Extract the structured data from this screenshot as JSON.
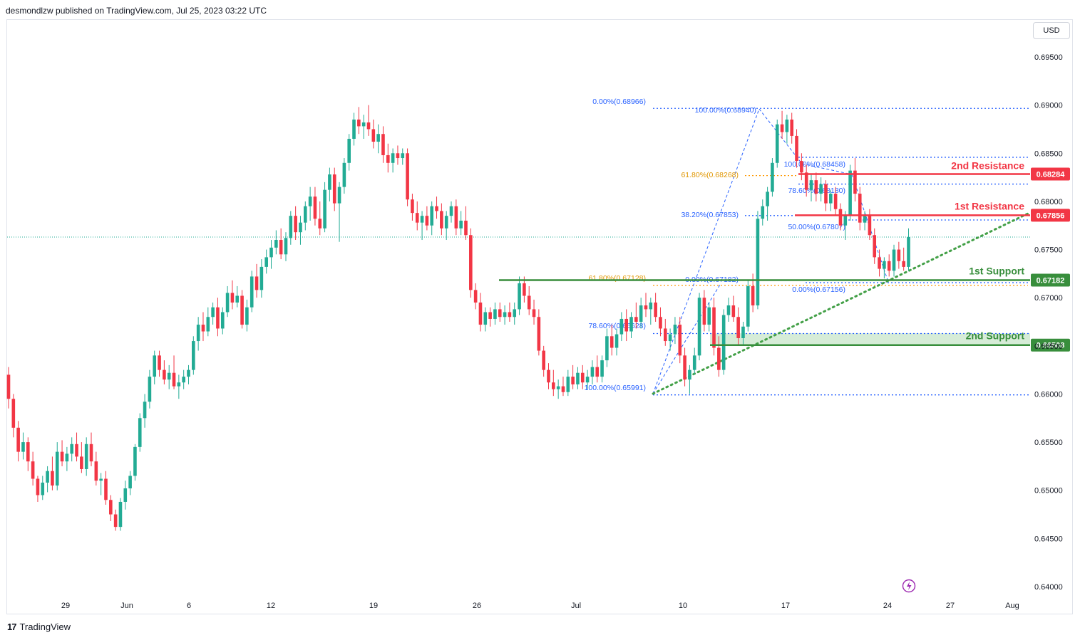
{
  "header": {
    "publisher": "desmondlzw published on TradingView.com, Jul 25, 2023 03:22 UTC"
  },
  "currency_button": "USD",
  "footer": {
    "brand": "TradingView",
    "logo": "17"
  },
  "colors": {
    "up": "#22ab94",
    "down": "#f23645",
    "resistance": "#f23645",
    "support": "#388e3c",
    "fib_blue": "#2962ff",
    "fib_orange": "#ff9800",
    "trend": "#43a047",
    "zone": "#c8e6c9"
  },
  "chart_data": {
    "type": "candlestick",
    "title": "",
    "y_axis": {
      "ticks": [
        "0.69500",
        "0.69000",
        "0.68500",
        "0.68000",
        "0.67500",
        "0.67000",
        "0.66500",
        "0.66000",
        "0.65500",
        "0.65000",
        "0.64500",
        "0.64000"
      ],
      "range": [
        0.6375,
        0.6985
      ]
    },
    "x_axis": {
      "labels": [
        "29",
        "Jun",
        "6",
        "12",
        "19",
        "26",
        "Jul",
        "10",
        "17",
        "24",
        "27",
        "Aug"
      ]
    },
    "last_price": 0.6763,
    "levels": [
      {
        "name": "2nd Resistance",
        "value": 0.68284,
        "label": "0.68284",
        "kind": "resistance"
      },
      {
        "name": "1st Resistance",
        "value": 0.67856,
        "label": "0.67856",
        "kind": "resistance"
      },
      {
        "name": "1st Support",
        "value": 0.67182,
        "label": "0.67182",
        "kind": "support"
      },
      {
        "name": "2nd Support",
        "value": 0.66508,
        "label": "0.66508",
        "kind": "support"
      }
    ],
    "fib_labels": [
      {
        "text": "0.00%(0.68966)",
        "color": "blue"
      },
      {
        "text": "100.00%(0.68940)",
        "color": "blue"
      },
      {
        "text": "100.00%(0.68458)",
        "color": "blue"
      },
      {
        "text": "61.80%(0.68268)",
        "color": "orange"
      },
      {
        "text": "78.60%(0.68180)",
        "color": "blue"
      },
      {
        "text": "38.20%(0.67853)",
        "color": "blue"
      },
      {
        "text": "50.00%(0.67807)",
        "color": "blue"
      },
      {
        "text": "61.80%(0.67128)",
        "color": "orange"
      },
      {
        "text": "0.00%(0.67182)",
        "color": "blue"
      },
      {
        "text": "0.00%(0.67156)",
        "color": "blue"
      },
      {
        "text": "78.60%(0.66628)",
        "color": "blue"
      },
      {
        "text": "100.00%(0.65991)",
        "color": "blue"
      }
    ],
    "candles": [
      [
        0.662,
        0.6628,
        0.6585,
        0.6595
      ],
      [
        0.6595,
        0.66,
        0.6555,
        0.6565
      ],
      [
        0.6565,
        0.6572,
        0.653,
        0.654
      ],
      [
        0.654,
        0.656,
        0.6532,
        0.655
      ],
      [
        0.655,
        0.6555,
        0.652,
        0.653
      ],
      [
        0.653,
        0.654,
        0.6505,
        0.6512
      ],
      [
        0.6512,
        0.6515,
        0.6488,
        0.6495
      ],
      [
        0.6495,
        0.6515,
        0.649,
        0.6508
      ],
      [
        0.6508,
        0.6525,
        0.6498,
        0.652
      ],
      [
        0.652,
        0.6535,
        0.65,
        0.6505
      ],
      [
        0.6505,
        0.655,
        0.65,
        0.654
      ],
      [
        0.654,
        0.6552,
        0.6525,
        0.653
      ],
      [
        0.653,
        0.6545,
        0.652,
        0.6538
      ],
      [
        0.6538,
        0.6555,
        0.653,
        0.6548
      ],
      [
        0.6548,
        0.656,
        0.653,
        0.6535
      ],
      [
        0.6535,
        0.655,
        0.6518,
        0.6522
      ],
      [
        0.6522,
        0.6555,
        0.6515,
        0.6548
      ],
      [
        0.6548,
        0.656,
        0.6525,
        0.653
      ],
      [
        0.653,
        0.654,
        0.6505,
        0.651
      ],
      [
        0.651,
        0.6518,
        0.6495,
        0.6512
      ],
      [
        0.6512,
        0.652,
        0.6485,
        0.649
      ],
      [
        0.649,
        0.6495,
        0.6468,
        0.6475
      ],
      [
        0.6475,
        0.648,
        0.6458,
        0.6462
      ],
      [
        0.6462,
        0.6492,
        0.6458,
        0.6488
      ],
      [
        0.6488,
        0.651,
        0.648,
        0.6502
      ],
      [
        0.6502,
        0.652,
        0.6495,
        0.6515
      ],
      [
        0.6515,
        0.6548,
        0.651,
        0.6545
      ],
      [
        0.6545,
        0.658,
        0.654,
        0.6575
      ],
      [
        0.6575,
        0.66,
        0.6565,
        0.6592
      ],
      [
        0.6592,
        0.6625,
        0.6585,
        0.6618
      ],
      [
        0.6618,
        0.6645,
        0.661,
        0.664
      ],
      [
        0.664,
        0.6645,
        0.6618,
        0.6625
      ],
      [
        0.6625,
        0.6635,
        0.661,
        0.6615
      ],
      [
        0.6615,
        0.663,
        0.6605,
        0.6622
      ],
      [
        0.6622,
        0.664,
        0.6605,
        0.6608
      ],
      [
        0.6608,
        0.662,
        0.6595,
        0.6612
      ],
      [
        0.6612,
        0.6625,
        0.6605,
        0.6618
      ],
      [
        0.6618,
        0.663,
        0.661,
        0.6625
      ],
      [
        0.6625,
        0.666,
        0.662,
        0.6655
      ],
      [
        0.6655,
        0.668,
        0.6645,
        0.6672
      ],
      [
        0.6672,
        0.6685,
        0.6655,
        0.6665
      ],
      [
        0.6665,
        0.669,
        0.666,
        0.668
      ],
      [
        0.668,
        0.6695,
        0.6672,
        0.669
      ],
      [
        0.669,
        0.67,
        0.666,
        0.6668
      ],
      [
        0.6668,
        0.669,
        0.6662,
        0.6685
      ],
      [
        0.6685,
        0.6712,
        0.668,
        0.6705
      ],
      [
        0.6705,
        0.6718,
        0.6688,
        0.6695
      ],
      [
        0.6695,
        0.6712,
        0.669,
        0.6702
      ],
      [
        0.6702,
        0.6708,
        0.6668,
        0.6672
      ],
      [
        0.6672,
        0.6698,
        0.6665,
        0.669
      ],
      [
        0.669,
        0.6728,
        0.6685,
        0.6722
      ],
      [
        0.6722,
        0.6735,
        0.67,
        0.6708
      ],
      [
        0.6708,
        0.674,
        0.67,
        0.6732
      ],
      [
        0.6732,
        0.675,
        0.6725,
        0.6742
      ],
      [
        0.6742,
        0.676,
        0.673,
        0.6752
      ],
      [
        0.6752,
        0.677,
        0.6745,
        0.676
      ],
      [
        0.676,
        0.6772,
        0.674,
        0.6745
      ],
      [
        0.6745,
        0.6768,
        0.6738,
        0.6762
      ],
      [
        0.6762,
        0.679,
        0.6755,
        0.6785
      ],
      [
        0.6785,
        0.6795,
        0.676,
        0.6768
      ],
      [
        0.6768,
        0.6785,
        0.6755,
        0.6778
      ],
      [
        0.6778,
        0.68,
        0.677,
        0.6795
      ],
      [
        0.6795,
        0.6815,
        0.678,
        0.6805
      ],
      [
        0.6805,
        0.6815,
        0.6775,
        0.6782
      ],
      [
        0.6782,
        0.68,
        0.6765,
        0.6772
      ],
      [
        0.6772,
        0.682,
        0.6768,
        0.6812
      ],
      [
        0.6812,
        0.6835,
        0.68,
        0.6828
      ],
      [
        0.6828,
        0.6835,
        0.679,
        0.6798
      ],
      [
        0.6798,
        0.682,
        0.6758,
        0.6815
      ],
      [
        0.6815,
        0.6845,
        0.6808,
        0.684
      ],
      [
        0.684,
        0.687,
        0.6832,
        0.6865
      ],
      [
        0.6865,
        0.6892,
        0.6858,
        0.6885
      ],
      [
        0.6885,
        0.6898,
        0.687,
        0.6878
      ],
      [
        0.6878,
        0.689,
        0.6865,
        0.6882
      ],
      [
        0.6882,
        0.69,
        0.6868,
        0.6875
      ],
      [
        0.6875,
        0.6885,
        0.6855,
        0.6862
      ],
      [
        0.6862,
        0.688,
        0.685,
        0.687
      ],
      [
        0.687,
        0.6878,
        0.684,
        0.6848
      ],
      [
        0.6848,
        0.686,
        0.683,
        0.684
      ],
      [
        0.684,
        0.6855,
        0.683,
        0.685
      ],
      [
        0.685,
        0.6858,
        0.6838,
        0.6845
      ],
      [
        0.6845,
        0.6855,
        0.6838,
        0.685
      ],
      [
        0.685,
        0.6855,
        0.6795,
        0.6802
      ],
      [
        0.6802,
        0.6808,
        0.678,
        0.6788
      ],
      [
        0.6788,
        0.68,
        0.677,
        0.6778
      ],
      [
        0.6778,
        0.679,
        0.676,
        0.6785
      ],
      [
        0.6785,
        0.6795,
        0.677,
        0.6775
      ],
      [
        0.6775,
        0.68,
        0.6765,
        0.6795
      ],
      [
        0.6795,
        0.6805,
        0.6782,
        0.679
      ],
      [
        0.679,
        0.6798,
        0.6765,
        0.6772
      ],
      [
        0.6772,
        0.679,
        0.676,
        0.6785
      ],
      [
        0.6785,
        0.68,
        0.6778,
        0.6795
      ],
      [
        0.6795,
        0.6802,
        0.6765,
        0.6772
      ],
      [
        0.6772,
        0.679,
        0.6765,
        0.678
      ],
      [
        0.678,
        0.6795,
        0.676,
        0.6765
      ],
      [
        0.6765,
        0.6772,
        0.67,
        0.6708
      ],
      [
        0.6708,
        0.6715,
        0.6688,
        0.6695
      ],
      [
        0.6695,
        0.6705,
        0.6665,
        0.6672
      ],
      [
        0.6672,
        0.669,
        0.6665,
        0.6685
      ],
      [
        0.6685,
        0.669,
        0.667,
        0.6678
      ],
      [
        0.6678,
        0.6695,
        0.6672,
        0.6688
      ],
      [
        0.6688,
        0.6695,
        0.6675,
        0.668
      ],
      [
        0.668,
        0.6692,
        0.6672,
        0.6685
      ],
      [
        0.6685,
        0.6695,
        0.6675,
        0.668
      ],
      [
        0.668,
        0.6695,
        0.6672,
        0.6688
      ],
      [
        0.6688,
        0.6722,
        0.6682,
        0.6715
      ],
      [
        0.6715,
        0.6722,
        0.6695,
        0.6702
      ],
      [
        0.6702,
        0.6712,
        0.6682,
        0.6688
      ],
      [
        0.6688,
        0.6698,
        0.6672,
        0.668
      ],
      [
        0.668,
        0.6688,
        0.664,
        0.6645
      ],
      [
        0.6645,
        0.665,
        0.6618,
        0.6625
      ],
      [
        0.6625,
        0.6632,
        0.6605,
        0.6612
      ],
      [
        0.6612,
        0.6625,
        0.6598,
        0.6605
      ],
      [
        0.6605,
        0.6615,
        0.6595,
        0.6608
      ],
      [
        0.6608,
        0.6618,
        0.6598,
        0.6602
      ],
      [
        0.6602,
        0.6625,
        0.6598,
        0.6618
      ],
      [
        0.6618,
        0.663,
        0.6605,
        0.661
      ],
      [
        0.661,
        0.6628,
        0.6605,
        0.6622
      ],
      [
        0.6622,
        0.663,
        0.6605,
        0.6612
      ],
      [
        0.6612,
        0.6625,
        0.6605,
        0.6618
      ],
      [
        0.6618,
        0.6635,
        0.661,
        0.6628
      ],
      [
        0.6628,
        0.664,
        0.6612,
        0.6618
      ],
      [
        0.6618,
        0.664,
        0.6612,
        0.6635
      ],
      [
        0.6635,
        0.6668,
        0.6628,
        0.666
      ],
      [
        0.666,
        0.6672,
        0.664,
        0.6648
      ],
      [
        0.6648,
        0.6668,
        0.664,
        0.6662
      ],
      [
        0.6662,
        0.6685,
        0.6655,
        0.6678
      ],
      [
        0.6678,
        0.6688,
        0.6655,
        0.6665
      ],
      [
        0.6665,
        0.6685,
        0.6658,
        0.668
      ],
      [
        0.668,
        0.6695,
        0.6668,
        0.6675
      ],
      [
        0.6675,
        0.67,
        0.6668,
        0.6692
      ],
      [
        0.6692,
        0.6705,
        0.668,
        0.6688
      ],
      [
        0.6688,
        0.67,
        0.6672,
        0.6695
      ],
      [
        0.6695,
        0.6705,
        0.6675,
        0.668
      ],
      [
        0.668,
        0.669,
        0.666,
        0.6668
      ],
      [
        0.6668,
        0.6678,
        0.665,
        0.6655
      ],
      [
        0.6655,
        0.6668,
        0.6645,
        0.6662
      ],
      [
        0.6662,
        0.668,
        0.6652,
        0.6672
      ],
      [
        0.6672,
        0.668,
        0.6632,
        0.664
      ],
      [
        0.664,
        0.6648,
        0.6608,
        0.6615
      ],
      [
        0.6615,
        0.663,
        0.66,
        0.6625
      ],
      [
        0.6625,
        0.6648,
        0.662,
        0.664
      ],
      [
        0.664,
        0.6705,
        0.6635,
        0.67
      ],
      [
        0.67,
        0.6708,
        0.6665,
        0.6672
      ],
      [
        0.6672,
        0.6695,
        0.6665,
        0.669
      ],
      [
        0.669,
        0.67,
        0.664,
        0.6648
      ],
      [
        0.6648,
        0.666,
        0.6618,
        0.6625
      ],
      [
        0.6625,
        0.6688,
        0.662,
        0.6682
      ],
      [
        0.6682,
        0.67,
        0.6675,
        0.6692
      ],
      [
        0.6692,
        0.6702,
        0.6675,
        0.668
      ],
      [
        0.668,
        0.669,
        0.665,
        0.6658
      ],
      [
        0.6658,
        0.6675,
        0.665,
        0.667
      ],
      [
        0.667,
        0.6718,
        0.6665,
        0.6712
      ],
      [
        0.6712,
        0.6725,
        0.6685,
        0.6692
      ],
      [
        0.6692,
        0.679,
        0.6688,
        0.6782
      ],
      [
        0.6782,
        0.6802,
        0.6775,
        0.6795
      ],
      [
        0.6795,
        0.6815,
        0.678,
        0.681
      ],
      [
        0.681,
        0.6845,
        0.6805,
        0.684
      ],
      [
        0.684,
        0.6885,
        0.6835,
        0.688
      ],
      [
        0.688,
        0.6894,
        0.6865,
        0.6872
      ],
      [
        0.6872,
        0.689,
        0.686,
        0.6885
      ],
      [
        0.6885,
        0.6892,
        0.686,
        0.6868
      ],
      [
        0.6868,
        0.6875,
        0.6835,
        0.6842
      ],
      [
        0.6842,
        0.685,
        0.6822,
        0.683
      ],
      [
        0.683,
        0.6838,
        0.6805,
        0.6812
      ],
      [
        0.6812,
        0.6828,
        0.68,
        0.6822
      ],
      [
        0.6822,
        0.683,
        0.68,
        0.6808
      ],
      [
        0.6808,
        0.6825,
        0.68,
        0.6818
      ],
      [
        0.6818,
        0.6822,
        0.679,
        0.6798
      ],
      [
        0.6798,
        0.6812,
        0.679,
        0.6808
      ],
      [
        0.6808,
        0.6815,
        0.6785,
        0.6792
      ],
      [
        0.6792,
        0.6798,
        0.677,
        0.6775
      ],
      [
        0.6775,
        0.679,
        0.676,
        0.6785
      ],
      [
        0.6785,
        0.6838,
        0.678,
        0.6832
      ],
      [
        0.6832,
        0.6845,
        0.68,
        0.6808
      ],
      [
        0.6808,
        0.6815,
        0.677,
        0.6778
      ],
      [
        0.6778,
        0.679,
        0.677,
        0.6785
      ],
      [
        0.6785,
        0.6792,
        0.676,
        0.6765
      ],
      [
        0.6765,
        0.6772,
        0.6735,
        0.6742
      ],
      [
        0.6742,
        0.675,
        0.6722,
        0.673
      ],
      [
        0.673,
        0.6742,
        0.672,
        0.6738
      ],
      [
        0.6738,
        0.6745,
        0.6722,
        0.6728
      ],
      [
        0.6728,
        0.6755,
        0.6722,
        0.675
      ],
      [
        0.675,
        0.6758,
        0.673,
        0.6738
      ],
      [
        0.6738,
        0.6752,
        0.6728,
        0.6732
      ],
      [
        0.6732,
        0.6772,
        0.6728,
        0.6763
      ]
    ]
  }
}
